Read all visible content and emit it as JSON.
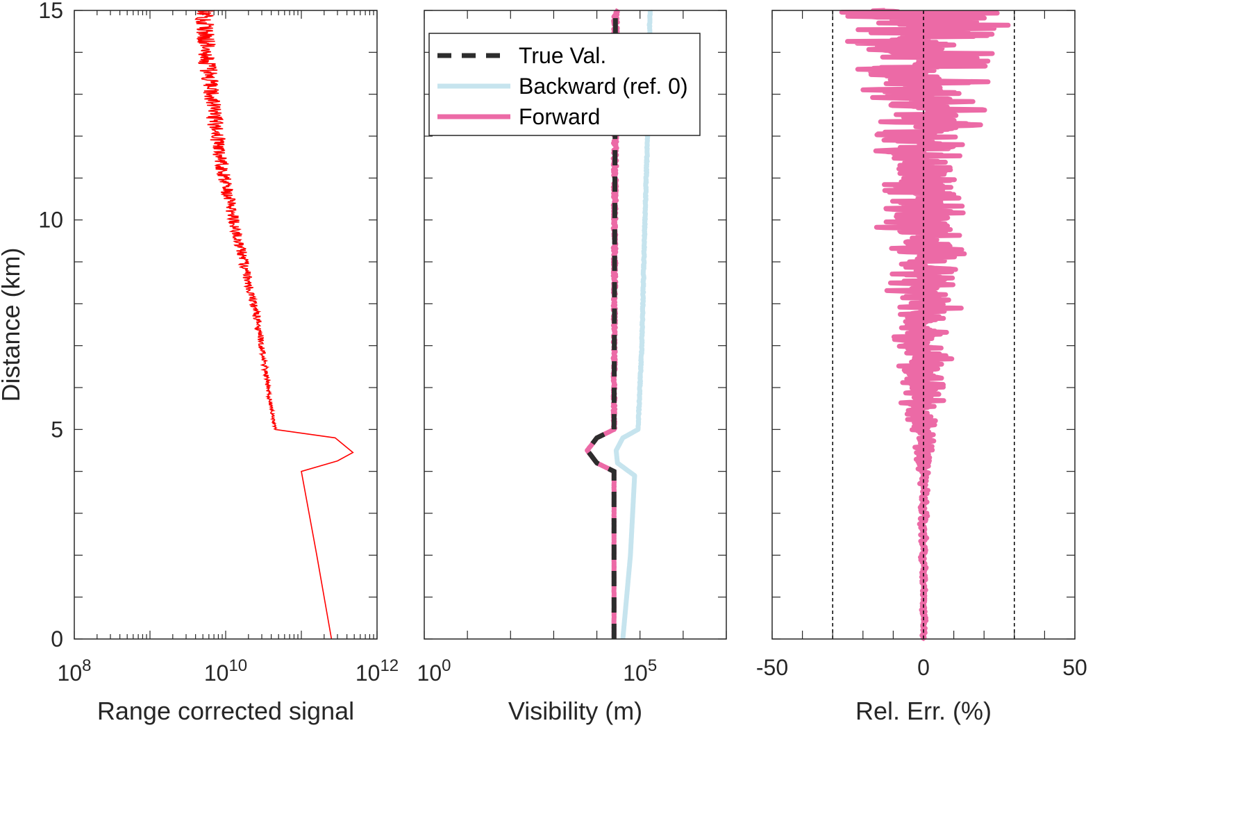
{
  "chart_data": [
    {
      "type": "line",
      "xscale": "log",
      "xlim": [
        100000000,
        1000000000000
      ],
      "ylim": [
        0,
        15
      ],
      "xticks": [
        {
          "v": 100000000,
          "base": "10",
          "exp": "8"
        },
        {
          "v": 10000000000,
          "base": "10",
          "exp": "10"
        },
        {
          "v": 1000000000000,
          "base": "10",
          "exp": "12"
        }
      ],
      "yticks": [
        "0",
        "5",
        "10",
        "15"
      ],
      "xlabel": "Range corrected signal",
      "ylabel": "Distance (km)",
      "grid": false,
      "series": [
        {
          "color": "#ff0000",
          "points": [
            [
              250000000000,
              0
            ],
            [
              160000000000,
              2
            ],
            [
              100000000000,
              4
            ],
            [
              300000000000,
              4.25
            ],
            [
              480000000000,
              4.45
            ],
            [
              280000000000,
              4.8
            ],
            [
              45000000000,
              5
            ],
            [
              40000000000,
              5.5
            ],
            [
              33000000000,
              6.5
            ],
            [
              27000000000,
              7.5
            ],
            [
              20000000000,
              8.5
            ],
            [
              15000000000,
              9.5
            ],
            [
              11000000000,
              10.5
            ],
            [
              8500000000,
              11.5
            ],
            [
              7000000000,
              12.5
            ],
            [
              6000000000,
              13.5
            ],
            [
              5500000000,
              14.5
            ],
            [
              5500000000,
              15
            ]
          ],
          "noise": "increasing with distance above 5 km"
        }
      ]
    },
    {
      "type": "line",
      "xscale": "log",
      "xlim": [
        1,
        10000000
      ],
      "ylim": [
        0,
        15
      ],
      "xticks": [
        {
          "v": 1,
          "base": "10",
          "exp": "0"
        },
        {
          "v": 100000,
          "base": "10",
          "exp": "5"
        }
      ],
      "xlabel": "Visibility (m)",
      "ylabel": "",
      "legend": "top",
      "series": [
        {
          "name": "True Val.",
          "color": "#2d2d2d",
          "style": "dashed",
          "points": [
            [
              25000,
              0
            ],
            [
              25000,
              4
            ],
            [
              10000,
              4.2
            ],
            [
              6000,
              4.5
            ],
            [
              10000,
              4.8
            ],
            [
              25000,
              5
            ],
            [
              27000,
              15
            ]
          ]
        },
        {
          "name": "Backward (ref. 0)",
          "color": "#c6e4ee",
          "style": "solid",
          "points": [
            [
              40000,
              0
            ],
            [
              60000,
              2
            ],
            [
              75000,
              3.9
            ],
            [
              30000,
              4.2
            ],
            [
              28000,
              4.5
            ],
            [
              40000,
              4.8
            ],
            [
              90000,
              5
            ],
            [
              110000,
              7
            ],
            [
              130000,
              10
            ],
            [
              150000,
              12
            ],
            [
              170000,
              15
            ]
          ]
        },
        {
          "name": "Forward",
          "color": "#ec6aa6",
          "style": "solid",
          "points": [
            [
              25000,
              0
            ],
            [
              25000,
              4
            ],
            [
              10000,
              4.2
            ],
            [
              6000,
              4.5
            ],
            [
              10000,
              4.8
            ],
            [
              25000,
              5
            ],
            [
              27000,
              15
            ]
          ]
        }
      ]
    },
    {
      "type": "line",
      "xlim": [
        -50,
        50
      ],
      "ylim": [
        0,
        15
      ],
      "xticks": [
        "-50",
        "0",
        "50"
      ],
      "xlabel": "Rel. Err. (%)",
      "ylabel": "",
      "reference_lines": [
        -30,
        0,
        30
      ],
      "series": [
        {
          "color": "#ec6aa6",
          "envelope": [
            [
              0,
              1
            ],
            [
              2,
              1.5
            ],
            [
              4,
              2.5
            ],
            [
              5,
              8
            ],
            [
              7,
              15
            ],
            [
              9,
              20
            ],
            [
              11,
              25
            ],
            [
              13,
              30
            ],
            [
              14,
              40
            ],
            [
              15,
              50
            ]
          ],
          "description": "relative error noise growing with distance"
        }
      ]
    }
  ]
}
